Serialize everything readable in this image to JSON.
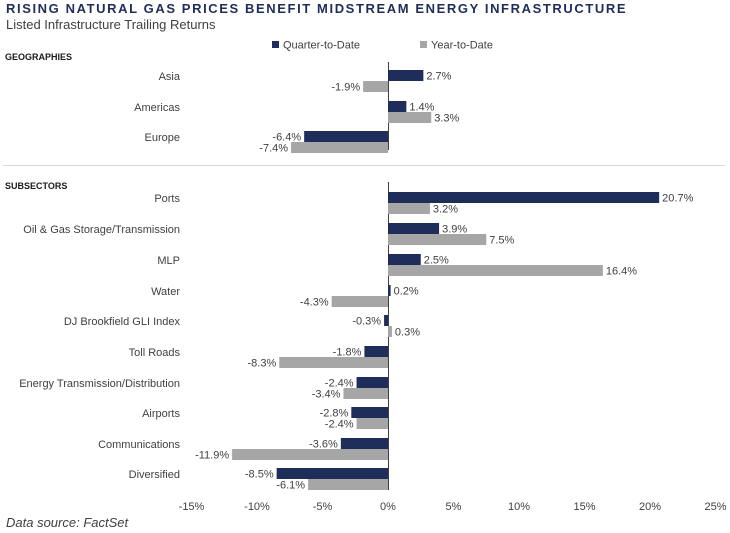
{
  "title": "RISING NATURAL GAS PRICES BENEFIT MIDSTREAM ENERGY INFRASTRUCTURE",
  "subtitle": "Listed Infrastructure Trailing Returns",
  "source": "Data source: FactSet",
  "colors": {
    "qtd": "#1f2d5a",
    "ytd": "#a6a6a6",
    "axis": "#404040",
    "grid": "#d9d9d9"
  },
  "chart_data": {
    "type": "bar",
    "orientation": "horizontal",
    "xlim": [
      -15,
      25
    ],
    "xticks": [
      -15,
      -10,
      -5,
      0,
      5,
      10,
      15,
      20,
      25
    ],
    "xtick_labels": [
      "-15%",
      "-10%",
      "-5%",
      "0%",
      "5%",
      "10%",
      "15%",
      "20%",
      "25%"
    ],
    "legend": [
      "Quarter-to-Date",
      "Year-to-Date"
    ],
    "legend_position": "top",
    "groups": [
      {
        "name": "GEOGRAPHIES",
        "categories": [
          "Asia",
          "Americas",
          "Europe"
        ],
        "series": [
          {
            "name": "Quarter-to-Date",
            "values": [
              2.7,
              1.4,
              -6.4
            ]
          },
          {
            "name": "Year-to-Date",
            "values": [
              -1.9,
              3.3,
              -7.4
            ]
          }
        ]
      },
      {
        "name": "SUBSECTORS",
        "categories": [
          "Ports",
          "Oil & Gas Storage/Transmission",
          "MLP",
          "Water",
          "DJ Brookfield GLI Index",
          "Toll Roads",
          "Energy Transmission/Distribution",
          "Airports",
          "Communications",
          "Diversified"
        ],
        "series": [
          {
            "name": "Quarter-to-Date",
            "values": [
              20.7,
              3.9,
              2.5,
              0.2,
              -0.3,
              -1.8,
              -2.4,
              -2.8,
              -3.6,
              -8.5
            ]
          },
          {
            "name": "Year-to-Date",
            "values": [
              3.2,
              7.5,
              16.4,
              -4.3,
              0.3,
              -8.3,
              -3.4,
              -2.4,
              -11.9,
              -6.1
            ]
          }
        ]
      }
    ]
  }
}
